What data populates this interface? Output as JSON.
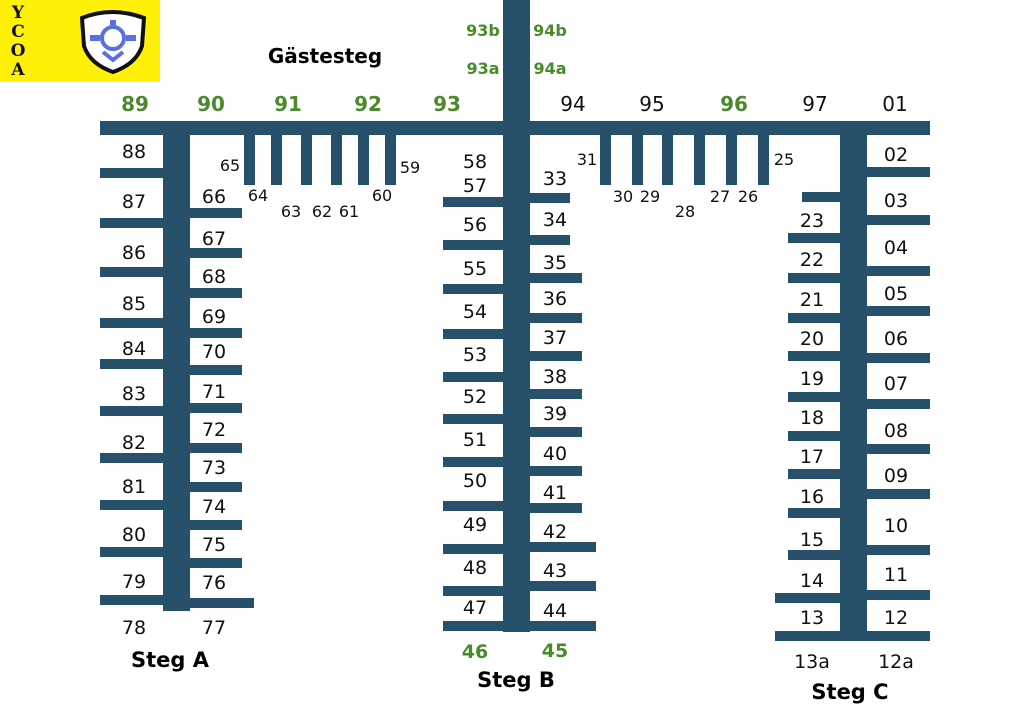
{
  "marina": {
    "logo": {
      "letters": [
        "Y",
        "C",
        "O",
        "A"
      ],
      "emblem": "shield-anchor-emblem"
    },
    "colors": {
      "dock": "#27506b",
      "guest": "#4a8a2a",
      "text": "#111111",
      "logo_bg": "#fff00a"
    },
    "labels": {
      "guest_pier": "Gästesteg",
      "steg_a": "Steg A",
      "steg_b": "Steg B",
      "steg_c": "Steg C"
    },
    "berths": {
      "top_guest": [
        "89",
        "90",
        "91",
        "92",
        "93"
      ],
      "top_other": [
        "94",
        "95",
        "96",
        "97",
        "01"
      ],
      "top_other_guest_flags": [
        false,
        false,
        true,
        false,
        false
      ],
      "stub_93": [
        "93b",
        "93a"
      ],
      "stub_94": [
        "94b",
        "94a"
      ],
      "a_left": [
        "88",
        "87",
        "86",
        "85",
        "84",
        "83",
        "82",
        "81",
        "80",
        "79",
        "78"
      ],
      "a_right": [
        "66",
        "67",
        "68",
        "69",
        "70",
        "71",
        "72",
        "73",
        "74",
        "75",
        "76",
        "77"
      ],
      "a_fingers": [
        "65",
        "64",
        "63",
        "62",
        "61",
        "60",
        "59"
      ],
      "b_left": [
        "58",
        "57",
        "56",
        "55",
        "54",
        "53",
        "52",
        "51",
        "50",
        "49",
        "48",
        "47",
        "46"
      ],
      "b_right": [
        "33",
        "34",
        "35",
        "36",
        "37",
        "38",
        "39",
        "40",
        "41",
        "42",
        "43",
        "44",
        "45"
      ],
      "b_fingers": [
        "31",
        "30",
        "29",
        "28",
        "27",
        "26",
        "25"
      ],
      "c_left": [
        "23",
        "22",
        "21",
        "20",
        "19",
        "18",
        "17",
        "16",
        "15",
        "14",
        "13",
        "13a"
      ],
      "c_right": [
        "02",
        "03",
        "04",
        "05",
        "06",
        "07",
        "08",
        "09",
        "10",
        "11",
        "12",
        "12a"
      ]
    }
  }
}
